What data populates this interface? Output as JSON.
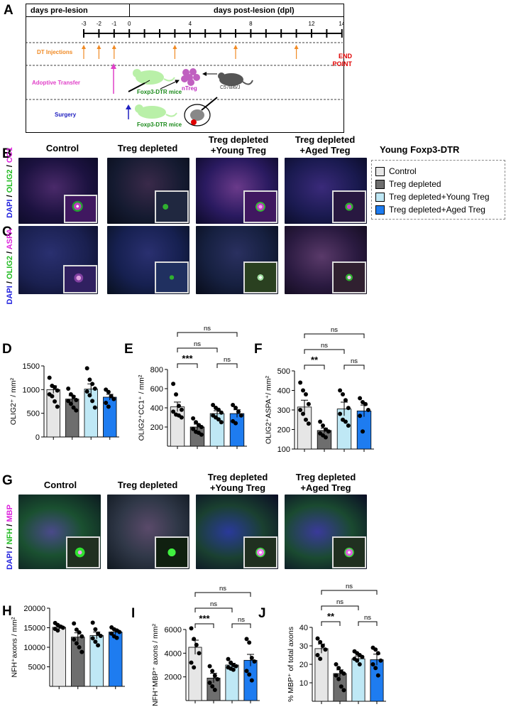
{
  "panelA": {
    "label": "A",
    "pre_lesion": "days pre-lesion",
    "post_lesion": "days post-lesion (dpl)",
    "ticks": [
      "-3",
      "-2",
      "-1",
      "0",
      "",
      "",
      "",
      "4",
      "",
      "",
      "",
      "8",
      "",
      "",
      "",
      "12",
      "",
      "14"
    ],
    "tick_positions": [
      -3,
      -2,
      -1,
      0,
      1,
      2,
      3,
      4,
      5,
      6,
      7,
      8,
      9,
      10,
      11,
      12,
      13,
      14
    ],
    "dt_label": "DT Injections",
    "dt_days": [
      -3,
      -2,
      -1,
      3,
      7,
      11
    ],
    "end_point": "END POINT",
    "adoptive_label": "Adoptive Transfer",
    "surgery_label": "Surgery",
    "foxp3_mice": "Foxp3-DTR mice",
    "ntreg": "nTreg",
    "c57": "C57Bl6/J",
    "colors": {
      "dt": "#f08a24",
      "adoptive": "#e040c8",
      "surgery": "#2020c0",
      "green": "#1a8a1a",
      "red": "#e00000"
    }
  },
  "columns": {
    "control": "Control",
    "treg_depleted": "Treg depleted",
    "young_line1": "Treg depleted",
    "young_line2": "+Young Treg",
    "aged_line1": "Treg depleted",
    "aged_line2": "+Aged Treg",
    "young_foxp3": "Young Foxp3-DTR"
  },
  "legend": [
    {
      "label": "Control",
      "color": "#e6e6e6"
    },
    {
      "label": "Treg depleted",
      "color": "#6e6e6e"
    },
    {
      "label": "Treg depleted+Young Treg",
      "color": "#bfe8f5"
    },
    {
      "label": "Treg depleted+Aged Treg",
      "color": "#1e7cf0"
    }
  ],
  "panelB": {
    "label": "B",
    "stain_dapi": "DAPI",
    "stain_olig2": "OLIG2",
    "stain_cc1": "CC1",
    "sep": " / "
  },
  "panelC": {
    "label": "C",
    "stain_dapi": "DAPI",
    "stain_olig2": "OLIG2",
    "stain_aspa": "ASPA",
    "sep": " / "
  },
  "panelG": {
    "label": "G",
    "stain_dapi": "DAPI",
    "stain_nfh": "NFH",
    "stain_mbp": "MBP",
    "sep": " / "
  },
  "stain_colors": {
    "dapi": "#2222dd",
    "green": "#22bb22",
    "magenta": "#dd22dd"
  },
  "chart_data": [
    {
      "panel": "D",
      "type": "bar",
      "ylabel": "OLIG2⁺ / mm²",
      "ylim": [
        0,
        1500
      ],
      "yticks": [
        0,
        500,
        1000,
        1500
      ],
      "values": [
        1000,
        800,
        1010,
        840
      ],
      "errors": [
        80,
        70,
        110,
        60
      ],
      "points": [
        [
          1250,
          1080,
          1050,
          980,
          900,
          860,
          750,
          640
        ],
        [
          1020,
          900,
          850,
          780,
          760,
          700,
          620,
          560
        ],
        [
          1450,
          1210,
          1120,
          1020,
          960,
          880,
          760,
          620
        ],
        [
          1000,
          950,
          860,
          800,
          720,
          640
        ]
      ],
      "comparisons": []
    },
    {
      "panel": "E",
      "type": "bar",
      "ylabel": "OLIG2⁺CC1⁺ / mm²",
      "ylim": [
        0,
        800
      ],
      "yticks": [
        200,
        400,
        600,
        800
      ],
      "values": [
        410,
        200,
        340,
        340
      ],
      "errors": [
        50,
        30,
        30,
        40
      ],
      "points": [
        [
          650,
          540,
          420,
          380,
          360,
          330,
          320,
          300
        ],
        [
          290,
          250,
          220,
          200,
          180,
          150,
          140,
          120
        ],
        [
          430,
          400,
          380,
          350,
          320,
          300,
          280,
          250
        ],
        [
          430,
          400,
          360,
          320,
          260,
          240
        ]
      ],
      "comparisons": [
        {
          "from": 0,
          "to": 1,
          "label": "***",
          "level": 1
        },
        {
          "from": 0,
          "to": 2,
          "label": "ns",
          "level": 2
        },
        {
          "from": 2,
          "to": 3,
          "label": "ns",
          "level": 1
        },
        {
          "from": 0,
          "to": 3,
          "label": "ns",
          "level": 3
        }
      ]
    },
    {
      "panel": "F",
      "type": "bar",
      "ylabel": "OLIG2⁺ASPA⁺/ mm²",
      "ylim": [
        100,
        500
      ],
      "yticks": [
        100,
        200,
        300,
        400,
        500
      ],
      "values": [
        315,
        195,
        305,
        295
      ],
      "errors": [
        35,
        12,
        35,
        30
      ],
      "points": [
        [
          440,
          400,
          380,
          330,
          300,
          280,
          250,
          230
        ],
        [
          240,
          220,
          200,
          190,
          180,
          170,
          160
        ],
        [
          400,
          380,
          350,
          310,
          280,
          250,
          240,
          220
        ],
        [
          360,
          340,
          330,
          300,
          270,
          190
        ]
      ],
      "comparisons": [
        {
          "from": 0,
          "to": 1,
          "label": "**",
          "level": 1
        },
        {
          "from": 0,
          "to": 2,
          "label": "ns",
          "level": 2
        },
        {
          "from": 2,
          "to": 3,
          "label": "ns",
          "level": 1
        },
        {
          "from": 0,
          "to": 3,
          "label": "ns",
          "level": 3
        }
      ]
    },
    {
      "panel": "H",
      "type": "bar",
      "ylabel": "NFH⁺axons /  mm²",
      "ylim": [
        0,
        20000
      ],
      "yticks": [
        5000,
        10000,
        15000,
        20000
      ],
      "values": [
        15100,
        12600,
        13000,
        13900
      ],
      "errors": [
        500,
        1100,
        900,
        600
      ],
      "points": [
        [
          16200,
          15700,
          15300,
          15000,
          14700,
          14300
        ],
        [
          16100,
          14500,
          13800,
          12800,
          12000,
          11000,
          10000,
          8800
        ],
        [
          16300,
          14600,
          13500,
          12900,
          12300,
          11400,
          10500
        ],
        [
          15100,
          14600,
          14300,
          13900,
          13500,
          12800,
          12400
        ]
      ],
      "comparisons": []
    },
    {
      "panel": "I",
      "type": "bar",
      "ylabel": "NFH⁺MBP⁺ axons / mm²",
      "ylim": [
        0,
        6000
      ],
      "yticks": [
        2000,
        4000,
        6000
      ],
      "values": [
        4500,
        1900,
        3000,
        3400
      ],
      "errors": [
        600,
        400,
        150,
        500
      ],
      "points": [
        [
          6100,
          5200,
          4700,
          4000,
          3200,
          2800
        ],
        [
          2900,
          2500,
          2100,
          1800,
          1500,
          1200,
          900
        ],
        [
          3500,
          3200,
          3000,
          2900,
          2800,
          2700,
          2600
        ],
        [
          5200,
          4900,
          3600,
          3300,
          2500,
          2200,
          1700
        ]
      ],
      "comparisons": [
        {
          "from": 0,
          "to": 1,
          "label": "***",
          "level": 1
        },
        {
          "from": 0,
          "to": 2,
          "label": "ns",
          "level": 2
        },
        {
          "from": 2,
          "to": 3,
          "label": "ns",
          "level": 1
        },
        {
          "from": 0,
          "to": 3,
          "label": "ns",
          "level": 3
        }
      ]
    },
    {
      "panel": "J",
      "type": "bar",
      "ylabel": "% MBP⁺ of total axons",
      "ylim": [
        0,
        40
      ],
      "yticks": [
        10,
        20,
        30,
        40
      ],
      "values": [
        28.5,
        15,
        23,
        22.5
      ],
      "errors": [
        2.5,
        2,
        1.5,
        3
      ],
      "points": [
        [
          34,
          32,
          30,
          28,
          25,
          23
        ],
        [
          20,
          18,
          16,
          15,
          14,
          12,
          8,
          6
        ],
        [
          27,
          26,
          25,
          24,
          23,
          22,
          20
        ],
        [
          29,
          28,
          26,
          22,
          20,
          18,
          14
        ]
      ],
      "comparisons": [
        {
          "from": 0,
          "to": 1,
          "label": "**",
          "level": 1
        },
        {
          "from": 0,
          "to": 2,
          "label": "ns",
          "level": 2
        },
        {
          "from": 2,
          "to": 3,
          "label": "ns",
          "level": 1
        },
        {
          "from": 0,
          "to": 3,
          "label": "ns",
          "level": 3
        }
      ]
    }
  ]
}
